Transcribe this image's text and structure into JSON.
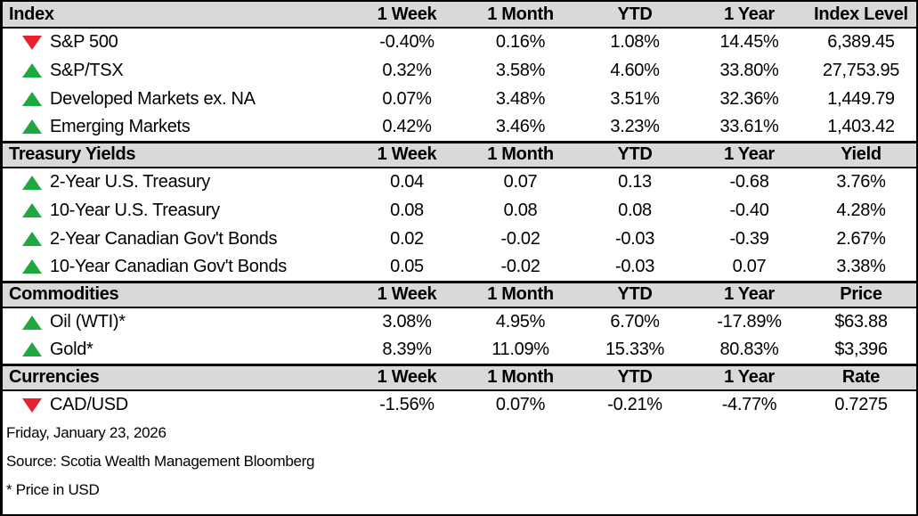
{
  "table": {
    "sections": [
      {
        "id": "index",
        "label": "Index",
        "columns": [
          "1 Week",
          "1 Month",
          "YTD",
          "1 Year",
          "Index Level"
        ],
        "rows": [
          {
            "direction": "down",
            "label": "S&P 500",
            "values": [
              "-0.40%",
              "0.16%",
              "1.08%",
              "14.45%",
              "6,389.45"
            ]
          },
          {
            "direction": "up",
            "label": "S&P/TSX",
            "values": [
              "0.32%",
              "3.58%",
              "4.60%",
              "33.80%",
              "27,753.95"
            ]
          },
          {
            "direction": "up",
            "label": "Developed Markets ex. NA",
            "values": [
              "0.07%",
              "3.48%",
              "3.51%",
              "32.36%",
              "1,449.79"
            ]
          },
          {
            "direction": "up",
            "label": "Emerging Markets",
            "values": [
              "0.42%",
              "3.46%",
              "3.23%",
              "33.61%",
              "1,403.42"
            ]
          }
        ]
      },
      {
        "id": "treasury-yields",
        "label": "Treasury Yields",
        "columns": [
          "1 Week",
          "1 Month",
          "YTD",
          "1 Year",
          "Yield"
        ],
        "rows": [
          {
            "direction": "up",
            "label": "2-Year U.S. Treasury",
            "values": [
              "0.04",
              "0.07",
              "0.13",
              "-0.68",
              "3.76%"
            ]
          },
          {
            "direction": "up",
            "label": "10-Year U.S. Treasury",
            "values": [
              "0.08",
              "0.08",
              "0.08",
              "-0.40",
              "4.28%"
            ]
          },
          {
            "direction": "up",
            "label": "2-Year Canadian Gov't Bonds",
            "values": [
              "0.02",
              "-0.02",
              "-0.03",
              "-0.39",
              "2.67%"
            ]
          },
          {
            "direction": "up",
            "label": "10-Year Canadian Gov't Bonds",
            "values": [
              "0.05",
              "-0.02",
              "-0.03",
              "0.07",
              "3.38%"
            ]
          }
        ]
      },
      {
        "id": "commodities",
        "label": "Commodities",
        "columns": [
          "1 Week",
          "1 Month",
          "YTD",
          "1 Year",
          "Price"
        ],
        "rows": [
          {
            "direction": "up",
            "label": "Oil (WTI)*",
            "values": [
              "3.08%",
              "4.95%",
              "6.70%",
              "-17.89%",
              "$63.88"
            ]
          },
          {
            "direction": "up",
            "label": "Gold*",
            "values": [
              "8.39%",
              "11.09%",
              "15.33%",
              "80.83%",
              "$3,396"
            ]
          }
        ]
      },
      {
        "id": "currencies",
        "label": "Currencies",
        "columns": [
          "1 Week",
          "1 Month",
          "YTD",
          "1 Year",
          "Rate"
        ],
        "rows": [
          {
            "direction": "down",
            "label": "CAD/USD",
            "values": [
              "-1.56%",
              "0.07%",
              "-0.21%",
              "-4.77%",
              "0.7275"
            ]
          }
        ]
      }
    ]
  },
  "footer": {
    "date": "Friday, January 23, 2026",
    "source": "Source: Scotia Wealth Management Bloomberg",
    "note": "* Price in USD"
  },
  "colors": {
    "up": "#1fa83f",
    "down": "#e8212e",
    "header_bg": "#d9d9d9",
    "border": "#000000"
  }
}
